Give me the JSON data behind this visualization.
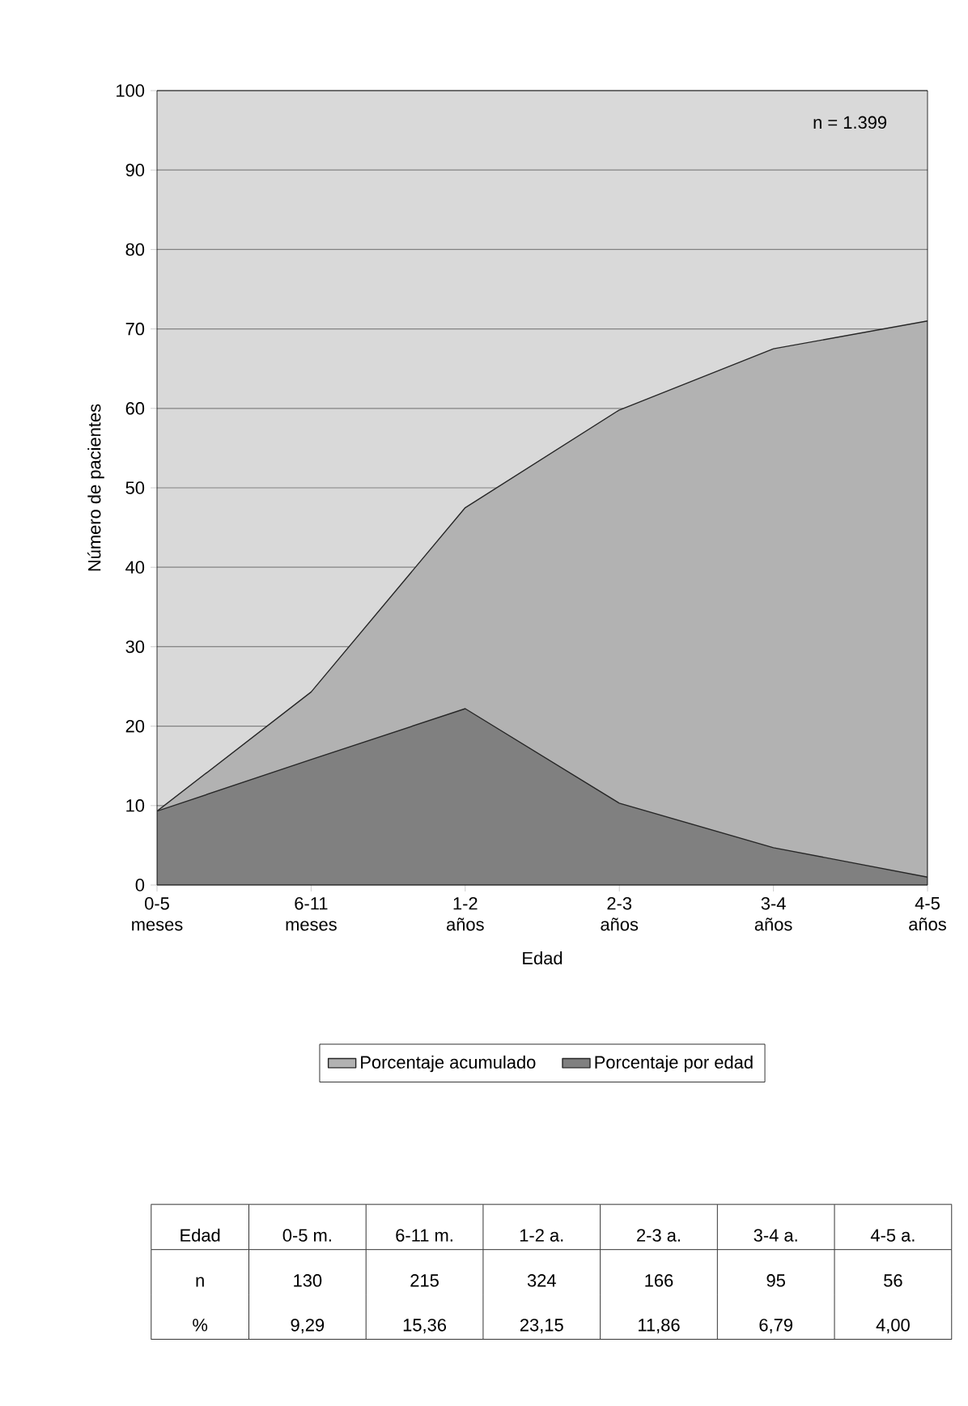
{
  "chart_data": {
    "type": "area",
    "xlabel": "Edad",
    "ylabel": "Número de pacientes",
    "categories": [
      "0-5 meses",
      "6-11 meses",
      "1-2 años",
      "2-3 años",
      "3-4 años",
      "4-5 años"
    ],
    "series": [
      {
        "name": "Porcentaje acumulado",
        "color": "#b2b2b2",
        "values": [
          9.3,
          24.3,
          47.5,
          59.8,
          67.5,
          71
        ]
      },
      {
        "name": "Porcentaje por edad",
        "color": "#808080",
        "values": [
          9.3,
          15.8,
          22.2,
          10.3,
          4.7,
          1
        ]
      }
    ],
    "ylim": [
      0,
      100
    ],
    "yticks": [
      0,
      10,
      20,
      30,
      40,
      50,
      60,
      70,
      80,
      90,
      100
    ],
    "grid": "y",
    "legend": "bottom",
    "annotations": [
      "n = 1.399",
      "Edad",
      "0-5 m.",
      "6-11 m.",
      "1-2 a.",
      "2-3 a.",
      "3-4 a.",
      "4-5 a.",
      "n",
      "130",
      "215",
      "324",
      "166",
      "95",
      "56",
      "%",
      "9,29",
      "15,36",
      "23,15",
      "11,86",
      "6,79",
      "4,00"
    ]
  }
}
